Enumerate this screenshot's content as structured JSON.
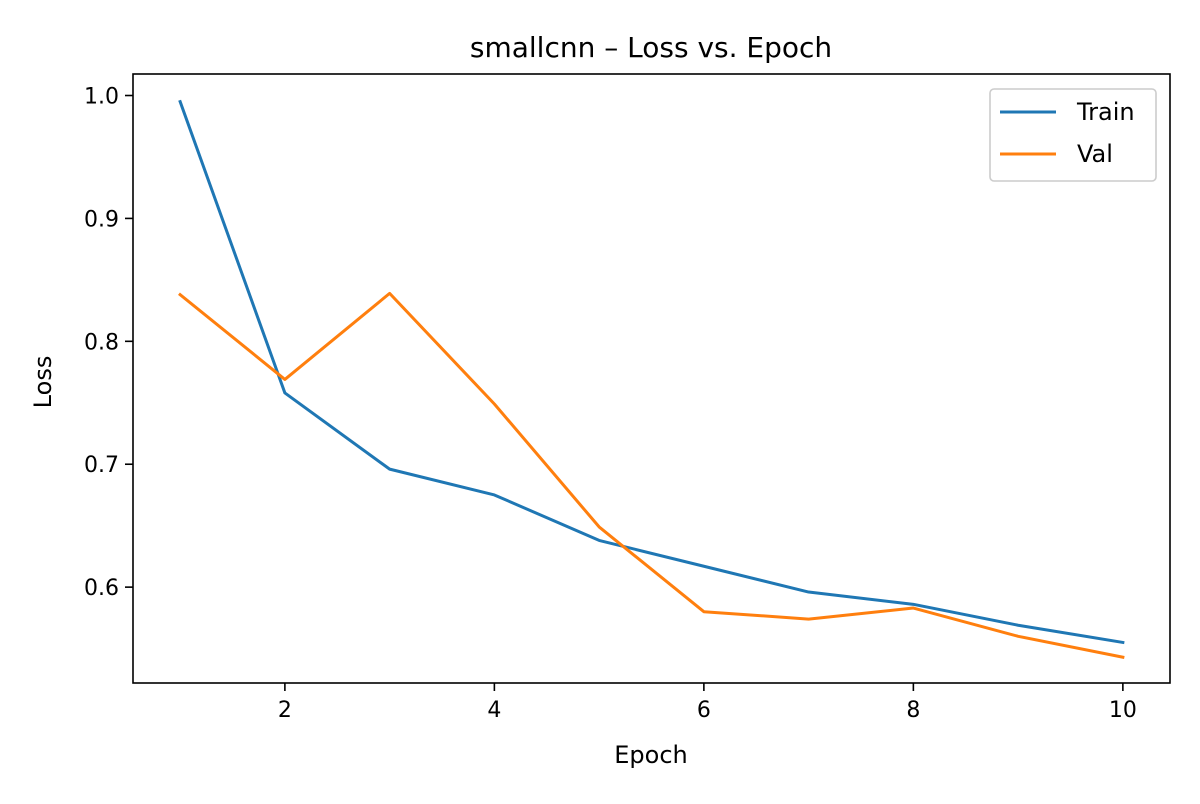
{
  "chart_data": {
    "type": "line",
    "title": "smallcnn – Loss vs. Epoch",
    "xlabel": "Epoch",
    "ylabel": "Loss",
    "xlim": [
      0.55,
      10.45
    ],
    "ylim": [
      0.522,
      1.0175
    ],
    "xticks": [
      2,
      4,
      6,
      8,
      10
    ],
    "xtick_labels": [
      "2",
      "4",
      "6",
      "8",
      "10"
    ],
    "yticks": [
      0.6,
      0.7,
      0.8,
      0.9,
      1.0
    ],
    "ytick_labels": [
      "0.6",
      "0.7",
      "0.8",
      "0.9",
      "1.0"
    ],
    "grid": false,
    "legend_position": "top-right",
    "x": [
      1,
      2,
      3,
      4,
      5,
      6,
      7,
      8,
      9,
      10
    ],
    "series": [
      {
        "name": "Train",
        "color": "#1f77b4",
        "values": [
          0.995,
          0.758,
          0.696,
          0.675,
          0.638,
          0.617,
          0.596,
          0.586,
          0.569,
          0.555
        ]
      },
      {
        "name": "Val",
        "color": "#ff7f0e",
        "values": [
          0.838,
          0.769,
          0.839,
          0.749,
          0.649,
          0.58,
          0.574,
          0.583,
          0.56,
          0.543
        ]
      }
    ]
  }
}
